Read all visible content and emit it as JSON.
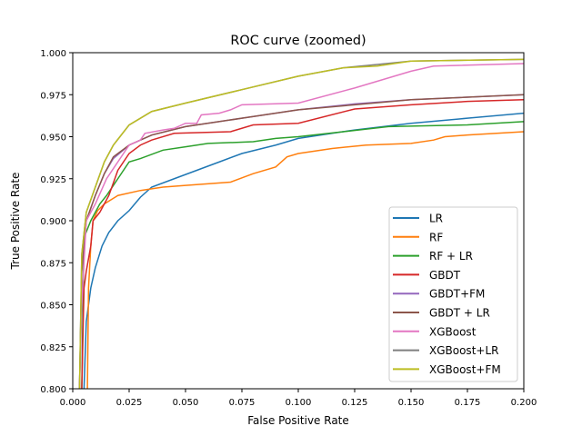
{
  "chart_data": {
    "type": "line",
    "title": "ROC curve (zoomed)",
    "xlabel": "False Positive Rate",
    "ylabel": "True Positive Rate",
    "xlim": [
      0,
      0.2
    ],
    "ylim": [
      0.8,
      1.0
    ],
    "xticks": [
      "0.000",
      "0.025",
      "0.050",
      "0.075",
      "0.100",
      "0.125",
      "0.150",
      "0.175",
      "0.200"
    ],
    "yticks": [
      "0.800",
      "0.825",
      "0.850",
      "0.875",
      "0.900",
      "0.925",
      "0.950",
      "0.975",
      "1.000"
    ],
    "grid": false,
    "legend_position": "lower-right",
    "series": [
      {
        "name": "LR",
        "color": "#1f77b4",
        "points": [
          [
            0.005,
            0.8
          ],
          [
            0.006,
            0.84
          ],
          [
            0.008,
            0.86
          ],
          [
            0.01,
            0.872
          ],
          [
            0.013,
            0.885
          ],
          [
            0.016,
            0.893
          ],
          [
            0.02,
            0.9
          ],
          [
            0.025,
            0.906
          ],
          [
            0.03,
            0.914
          ],
          [
            0.035,
            0.92
          ],
          [
            0.045,
            0.925
          ],
          [
            0.055,
            0.93
          ],
          [
            0.065,
            0.935
          ],
          [
            0.075,
            0.94
          ],
          [
            0.09,
            0.945
          ],
          [
            0.1,
            0.949
          ],
          [
            0.125,
            0.954
          ],
          [
            0.15,
            0.958
          ],
          [
            0.175,
            0.961
          ],
          [
            0.2,
            0.964
          ]
        ]
      },
      {
        "name": "RF",
        "color": "#ff7f0e",
        "points": [
          [
            0.0065,
            0.8
          ],
          [
            0.007,
            0.86
          ],
          [
            0.008,
            0.885
          ],
          [
            0.009,
            0.9
          ],
          [
            0.011,
            0.906
          ],
          [
            0.014,
            0.91
          ],
          [
            0.02,
            0.915
          ],
          [
            0.03,
            0.918
          ],
          [
            0.04,
            0.92
          ],
          [
            0.05,
            0.921
          ],
          [
            0.07,
            0.923
          ],
          [
            0.08,
            0.928
          ],
          [
            0.09,
            0.932
          ],
          [
            0.095,
            0.938
          ],
          [
            0.1,
            0.94
          ],
          [
            0.115,
            0.943
          ],
          [
            0.13,
            0.945
          ],
          [
            0.15,
            0.946
          ],
          [
            0.16,
            0.948
          ],
          [
            0.165,
            0.95
          ],
          [
            0.175,
            0.951
          ],
          [
            0.2,
            0.953
          ]
        ]
      },
      {
        "name": "RF + LR",
        "color": "#2ca02c",
        "points": [
          [
            0.004,
            0.8
          ],
          [
            0.005,
            0.89
          ],
          [
            0.008,
            0.9
          ],
          [
            0.012,
            0.91
          ],
          [
            0.015,
            0.915
          ],
          [
            0.02,
            0.925
          ],
          [
            0.025,
            0.935
          ],
          [
            0.03,
            0.937
          ],
          [
            0.04,
            0.942
          ],
          [
            0.05,
            0.944
          ],
          [
            0.06,
            0.946
          ],
          [
            0.08,
            0.947
          ],
          [
            0.09,
            0.949
          ],
          [
            0.1,
            0.95
          ],
          [
            0.12,
            0.953
          ],
          [
            0.14,
            0.956
          ],
          [
            0.175,
            0.957
          ],
          [
            0.2,
            0.959
          ]
        ]
      },
      {
        "name": "GBDT",
        "color": "#d62728",
        "points": [
          [
            0.004,
            0.8
          ],
          [
            0.005,
            0.86
          ],
          [
            0.006,
            0.87
          ],
          [
            0.008,
            0.885
          ],
          [
            0.009,
            0.9
          ],
          [
            0.012,
            0.905
          ],
          [
            0.016,
            0.915
          ],
          [
            0.02,
            0.93
          ],
          [
            0.025,
            0.94
          ],
          [
            0.03,
            0.945
          ],
          [
            0.035,
            0.948
          ],
          [
            0.045,
            0.952
          ],
          [
            0.07,
            0.953
          ],
          [
            0.08,
            0.957
          ],
          [
            0.1,
            0.958
          ],
          [
            0.125,
            0.9665
          ],
          [
            0.15,
            0.969
          ],
          [
            0.175,
            0.971
          ],
          [
            0.2,
            0.972
          ]
        ]
      },
      {
        "name": "GBDT+FM",
        "color": "#9467bd",
        "points": [
          [
            0.003,
            0.8
          ],
          [
            0.004,
            0.87
          ],
          [
            0.006,
            0.9
          ],
          [
            0.01,
            0.915
          ],
          [
            0.014,
            0.928
          ],
          [
            0.018,
            0.937
          ],
          [
            0.025,
            0.945
          ],
          [
            0.035,
            0.951
          ],
          [
            0.05,
            0.956
          ],
          [
            0.075,
            0.961
          ],
          [
            0.1,
            0.966
          ],
          [
            0.125,
            0.9695
          ],
          [
            0.15,
            0.972
          ],
          [
            0.2,
            0.975
          ]
        ]
      },
      {
        "name": "GBDT + LR",
        "color": "#8c564b",
        "points": [
          [
            0.003,
            0.8
          ],
          [
            0.004,
            0.87
          ],
          [
            0.006,
            0.9
          ],
          [
            0.01,
            0.915
          ],
          [
            0.014,
            0.928
          ],
          [
            0.018,
            0.938
          ],
          [
            0.025,
            0.945
          ],
          [
            0.035,
            0.951
          ],
          [
            0.05,
            0.956
          ],
          [
            0.075,
            0.961
          ],
          [
            0.1,
            0.966
          ],
          [
            0.125,
            0.969
          ],
          [
            0.15,
            0.972
          ],
          [
            0.2,
            0.975
          ]
        ]
      },
      {
        "name": "XGBoost",
        "color": "#e377c2",
        "points": [
          [
            0.003,
            0.8
          ],
          [
            0.004,
            0.85
          ],
          [
            0.006,
            0.9
          ],
          [
            0.01,
            0.91
          ],
          [
            0.015,
            0.925
          ],
          [
            0.02,
            0.935
          ],
          [
            0.025,
            0.945
          ],
          [
            0.03,
            0.948
          ],
          [
            0.032,
            0.952
          ],
          [
            0.04,
            0.954
          ],
          [
            0.045,
            0.955
          ],
          [
            0.05,
            0.958
          ],
          [
            0.055,
            0.958
          ],
          [
            0.057,
            0.963
          ],
          [
            0.065,
            0.964
          ],
          [
            0.07,
            0.966
          ],
          [
            0.075,
            0.969
          ],
          [
            0.1,
            0.97
          ],
          [
            0.125,
            0.979
          ],
          [
            0.15,
            0.989
          ],
          [
            0.16,
            0.992
          ],
          [
            0.2,
            0.9935
          ]
        ]
      },
      {
        "name": "XGBoost+LR",
        "color": "#7f7f7f",
        "points": [
          [
            0.003,
            0.8
          ],
          [
            0.004,
            0.88
          ],
          [
            0.006,
            0.905
          ],
          [
            0.01,
            0.92
          ],
          [
            0.014,
            0.935
          ],
          [
            0.018,
            0.945
          ],
          [
            0.025,
            0.957
          ],
          [
            0.035,
            0.965
          ],
          [
            0.05,
            0.97
          ],
          [
            0.075,
            0.978
          ],
          [
            0.1,
            0.986
          ],
          [
            0.12,
            0.991
          ],
          [
            0.135,
            0.993
          ],
          [
            0.15,
            0.995
          ],
          [
            0.2,
            0.996
          ]
        ]
      },
      {
        "name": "XGBoost+FM",
        "color": "#bcbd22",
        "points": [
          [
            0.003,
            0.8
          ],
          [
            0.004,
            0.88
          ],
          [
            0.006,
            0.905
          ],
          [
            0.01,
            0.92
          ],
          [
            0.014,
            0.935
          ],
          [
            0.018,
            0.945
          ],
          [
            0.025,
            0.957
          ],
          [
            0.035,
            0.965
          ],
          [
            0.05,
            0.97
          ],
          [
            0.075,
            0.978
          ],
          [
            0.1,
            0.986
          ],
          [
            0.12,
            0.991
          ],
          [
            0.135,
            0.992
          ],
          [
            0.15,
            0.995
          ],
          [
            0.2,
            0.996
          ]
        ]
      }
    ]
  }
}
